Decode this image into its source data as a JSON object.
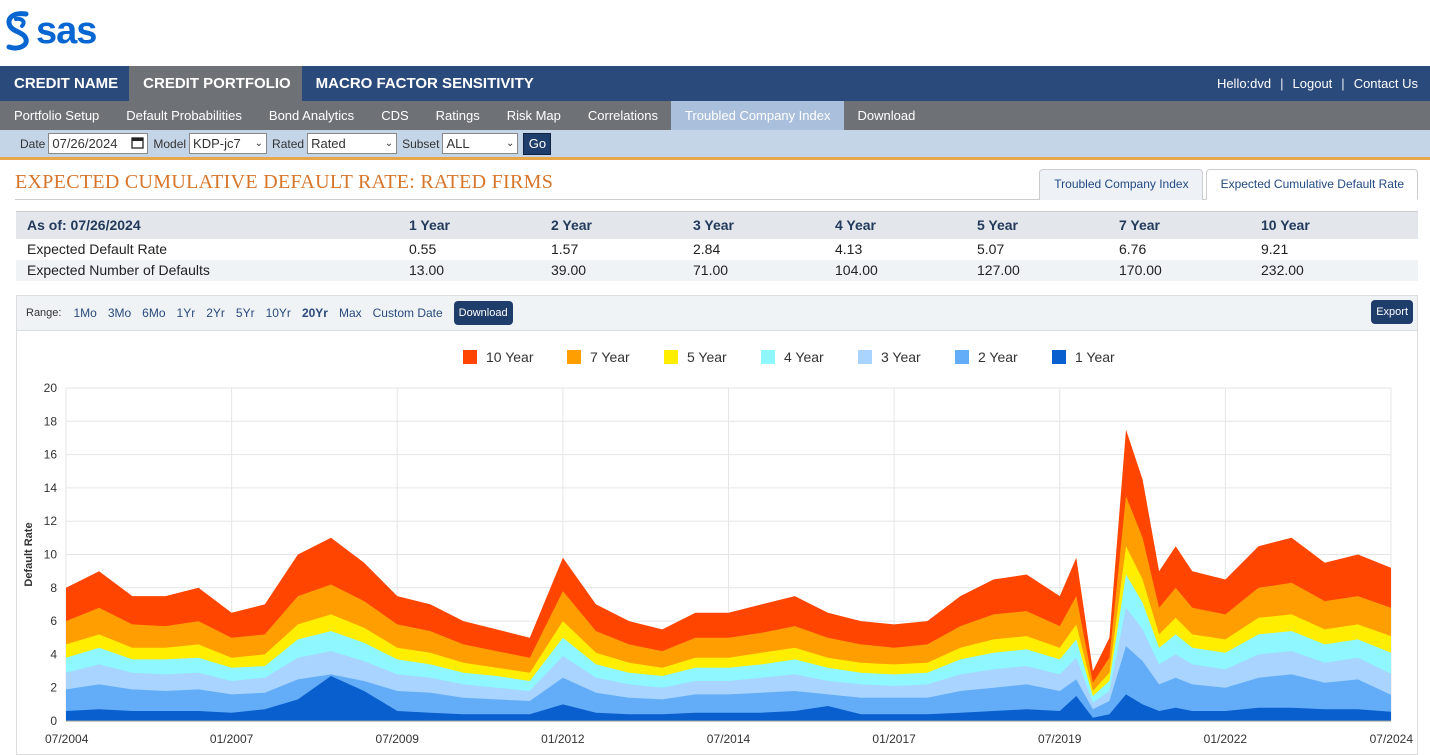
{
  "brand": {
    "logo_text": "sas"
  },
  "topnav": {
    "tabs": [
      {
        "label": "CREDIT NAME",
        "active": false
      },
      {
        "label": "CREDIT PORTFOLIO",
        "active": true
      },
      {
        "label": "MACRO FACTOR SENSITIVITY",
        "active": false
      }
    ],
    "greeting": "Hello:dvd",
    "logout": "Logout",
    "contact": "Contact Us"
  },
  "subnav": {
    "items": [
      {
        "label": "Portfolio Setup",
        "active": false
      },
      {
        "label": "Default Probabilities",
        "active": false
      },
      {
        "label": "Bond Analytics",
        "active": false
      },
      {
        "label": "CDS",
        "active": false
      },
      {
        "label": "Ratings",
        "active": false
      },
      {
        "label": "Risk Map",
        "active": false
      },
      {
        "label": "Correlations",
        "active": false
      },
      {
        "label": "Troubled Company Index",
        "active": true
      },
      {
        "label": "Download",
        "active": false
      }
    ]
  },
  "filters": {
    "date_label": "Date",
    "date_value": "07/26/2024",
    "model_label": "Model",
    "model_value": "KDP-jc7",
    "rated_label": "Rated",
    "rated_value": "Rated",
    "subset_label": "Subset",
    "subset_value": "ALL",
    "go_label": "Go"
  },
  "page": {
    "title": "EXPECTED CUMULATIVE DEFAULT RATE: RATED FIRMS",
    "view_tabs": [
      {
        "label": "Troubled Company Index",
        "active": false
      },
      {
        "label": "Expected Cumulative Default Rate",
        "active": true
      }
    ]
  },
  "summary": {
    "as_of": "As of: 07/26/2024",
    "headers": [
      "1 Year",
      "2 Year",
      "3 Year",
      "4 Year",
      "5 Year",
      "7 Year",
      "10 Year"
    ],
    "rows": [
      {
        "label": "Expected Default Rate",
        "values": [
          "0.55",
          "1.57",
          "2.84",
          "4.13",
          "5.07",
          "6.76",
          "9.21"
        ]
      },
      {
        "label": "Expected Number of Defaults",
        "values": [
          "13.00",
          "39.00",
          "71.00",
          "104.00",
          "127.00",
          "170.00",
          "232.00"
        ]
      }
    ]
  },
  "range": {
    "label": "Range:",
    "options": [
      {
        "label": "1Mo",
        "active": false
      },
      {
        "label": "3Mo",
        "active": false
      },
      {
        "label": "6Mo",
        "active": false
      },
      {
        "label": "1Yr",
        "active": false
      },
      {
        "label": "2Yr",
        "active": false
      },
      {
        "label": "5Yr",
        "active": false
      },
      {
        "label": "10Yr",
        "active": false
      },
      {
        "label": "20Yr",
        "active": true
      },
      {
        "label": "Max",
        "active": false
      },
      {
        "label": "Custom Date",
        "active": false
      }
    ],
    "download_label": "Download",
    "export_label": "Export"
  },
  "chart_data": {
    "type": "area",
    "stacked": false,
    "ylabel": "Default Rate",
    "ylim": [
      0,
      20
    ],
    "yticks": [
      0,
      2,
      4,
      6,
      8,
      10,
      12,
      14,
      16,
      18,
      20
    ],
    "xlim": [
      2004.5,
      2024.5
    ],
    "xticks": [
      {
        "label": "07/2004",
        "value": 2004.5
      },
      {
        "label": "01/2007",
        "value": 2007.0
      },
      {
        "label": "07/2009",
        "value": 2009.5
      },
      {
        "label": "01/2012",
        "value": 2012.0
      },
      {
        "label": "07/2014",
        "value": 2014.5
      },
      {
        "label": "01/2017",
        "value": 2017.0
      },
      {
        "label": "07/2019",
        "value": 2019.5
      },
      {
        "label": "01/2022",
        "value": 2022.0
      },
      {
        "label": "07/2024",
        "value": 2024.5
      }
    ],
    "grid": true,
    "legend_position": "top-center",
    "x": [
      2004.5,
      2005.0,
      2005.5,
      2006.0,
      2006.5,
      2007.0,
      2007.5,
      2008.0,
      2008.5,
      2009.0,
      2009.5,
      2010.0,
      2010.5,
      2011.0,
      2011.5,
      2012.0,
      2012.5,
      2013.0,
      2013.5,
      2014.0,
      2014.5,
      2015.0,
      2015.5,
      2016.0,
      2016.5,
      2017.0,
      2017.5,
      2018.0,
      2018.5,
      2019.0,
      2019.5,
      2019.75,
      2020.0,
      2020.25,
      2020.5,
      2020.75,
      2021.0,
      2021.25,
      2021.5,
      2022.0,
      2022.5,
      2023.0,
      2023.5,
      2024.0,
      2024.5
    ],
    "series": [
      {
        "name": "10 Year",
        "color": "#ff4500",
        "values": [
          8.0,
          9.0,
          7.5,
          7.5,
          8.0,
          6.5,
          7.0,
          10.0,
          11.0,
          9.5,
          7.5,
          7.0,
          6.0,
          5.5,
          5.0,
          9.8,
          7.0,
          6.0,
          5.5,
          6.5,
          6.5,
          7.0,
          7.5,
          6.5,
          6.0,
          5.8,
          6.0,
          7.5,
          8.5,
          8.8,
          7.5,
          9.8,
          3.0,
          5.0,
          17.5,
          14.5,
          9.0,
          10.5,
          9.0,
          8.5,
          10.5,
          11.0,
          9.5,
          10.0,
          9.2
        ]
      },
      {
        "name": "7 Year",
        "color": "#ff9e00",
        "values": [
          6.0,
          6.8,
          5.8,
          5.7,
          6.0,
          5.0,
          5.2,
          7.5,
          8.2,
          7.2,
          5.8,
          5.4,
          4.6,
          4.2,
          3.8,
          7.8,
          5.4,
          4.6,
          4.2,
          5.0,
          5.0,
          5.3,
          5.7,
          5.0,
          4.6,
          4.4,
          4.6,
          5.7,
          6.4,
          6.6,
          5.7,
          7.5,
          2.3,
          3.8,
          13.5,
          11.0,
          6.8,
          8.0,
          6.8,
          6.4,
          8.0,
          8.3,
          7.2,
          7.5,
          6.8
        ]
      },
      {
        "name": "5 Year",
        "color": "#ffee00",
        "values": [
          4.6,
          5.2,
          4.4,
          4.4,
          4.6,
          3.8,
          4.0,
          5.8,
          6.4,
          5.6,
          4.4,
          4.1,
          3.5,
          3.2,
          2.9,
          6.0,
          4.1,
          3.5,
          3.2,
          3.8,
          3.8,
          4.1,
          4.4,
          3.8,
          3.5,
          3.4,
          3.5,
          4.4,
          4.9,
          5.1,
          4.4,
          5.8,
          1.8,
          2.9,
          10.5,
          8.5,
          5.2,
          6.2,
          5.2,
          4.9,
          6.2,
          6.4,
          5.5,
          5.8,
          5.1
        ]
      },
      {
        "name": "4 Year",
        "color": "#8ff7ff",
        "values": [
          3.8,
          4.4,
          3.7,
          3.7,
          3.8,
          3.2,
          3.3,
          4.9,
          5.4,
          4.7,
          3.7,
          3.4,
          2.9,
          2.7,
          2.4,
          5.0,
          3.4,
          2.9,
          2.7,
          3.2,
          3.2,
          3.4,
          3.7,
          3.2,
          2.9,
          2.8,
          2.9,
          3.7,
          4.1,
          4.3,
          3.7,
          4.9,
          1.5,
          2.4,
          8.8,
          7.1,
          4.4,
          5.2,
          4.4,
          4.1,
          5.2,
          5.4,
          4.6,
          4.9,
          4.1
        ]
      },
      {
        "name": "3 Year",
        "color": "#a8d4ff",
        "values": [
          2.9,
          3.4,
          2.9,
          2.8,
          2.9,
          2.4,
          2.6,
          3.8,
          4.2,
          3.6,
          2.8,
          2.6,
          2.2,
          2.0,
          1.8,
          3.9,
          2.6,
          2.2,
          2.0,
          2.4,
          2.4,
          2.6,
          2.8,
          2.4,
          2.2,
          2.1,
          2.2,
          2.8,
          3.1,
          3.3,
          2.8,
          3.8,
          1.1,
          1.8,
          6.8,
          5.5,
          3.4,
          4.0,
          3.4,
          3.1,
          4.0,
          4.2,
          3.5,
          3.8,
          2.84
        ]
      },
      {
        "name": "2 Year",
        "color": "#63adf8",
        "values": [
          1.9,
          2.2,
          1.9,
          1.8,
          1.9,
          1.6,
          1.7,
          2.5,
          2.8,
          2.4,
          1.8,
          1.7,
          1.4,
          1.3,
          1.2,
          2.6,
          1.7,
          1.4,
          1.3,
          1.6,
          1.6,
          1.7,
          1.8,
          1.6,
          1.4,
          1.4,
          1.4,
          1.8,
          2.0,
          2.2,
          1.8,
          2.5,
          0.7,
          1.2,
          4.5,
          3.6,
          2.2,
          2.6,
          2.2,
          2.0,
          2.6,
          2.8,
          2.3,
          2.5,
          1.57
        ]
      },
      {
        "name": "1 Year",
        "color": "#0a5fcf",
        "values": [
          0.6,
          0.7,
          0.6,
          0.6,
          0.6,
          0.5,
          0.7,
          1.3,
          2.7,
          1.8,
          0.6,
          0.5,
          0.4,
          0.4,
          0.4,
          1.0,
          0.5,
          0.4,
          0.4,
          0.5,
          0.5,
          0.5,
          0.6,
          0.9,
          0.4,
          0.4,
          0.4,
          0.5,
          0.6,
          0.7,
          0.6,
          1.5,
          0.2,
          0.4,
          1.6,
          1.0,
          0.6,
          0.8,
          0.6,
          0.6,
          0.8,
          0.8,
          0.7,
          0.7,
          0.55
        ]
      }
    ]
  }
}
